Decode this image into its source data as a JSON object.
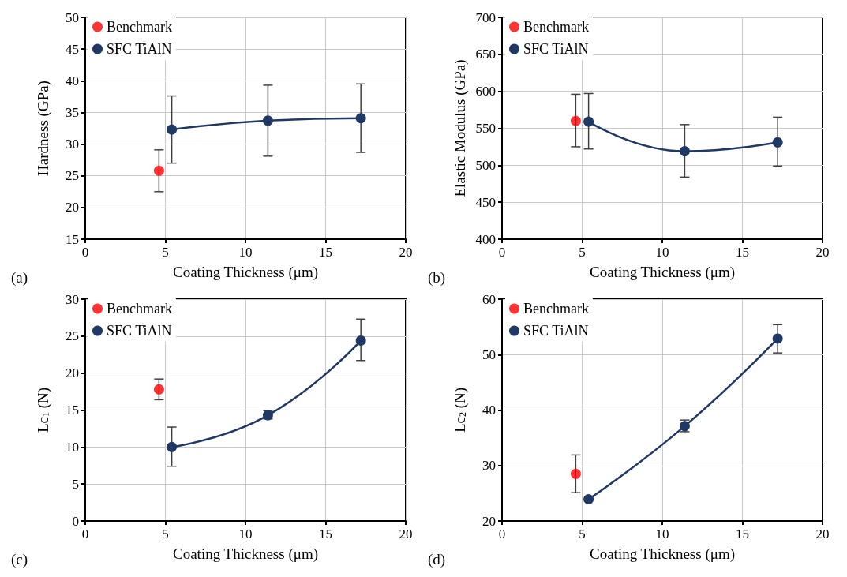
{
  "chart_data": [
    {
      "type": "scatter",
      "xlabel": "Coating Thickness (μm)",
      "ylabel": "Hardness (GPa)",
      "annotations": [
        "(a)"
      ],
      "xlim": [
        0,
        20
      ],
      "xticks": [
        0,
        5,
        10,
        15,
        20
      ],
      "ylim": [
        15,
        50
      ],
      "yticks": [
        15,
        20,
        25,
        30,
        35,
        40,
        45,
        50
      ],
      "grid": true,
      "legend": "top left",
      "marker": "circle",
      "series": [
        {
          "name": "Benchmark",
          "type": "scatter",
          "color": "#ff0000",
          "x": [
            4.6
          ],
          "values": [
            25.8
          ],
          "errors": [
            [
              22.5,
              29.1
            ]
          ]
        },
        {
          "name": "SFC TiAlN",
          "type": "line",
          "color": "#1f3864",
          "x": [
            5.4,
            11.4,
            17.2
          ],
          "values": [
            32.3,
            33.7,
            34.1
          ],
          "errors": [
            [
              27,
              37.6
            ],
            [
              28.1,
              39.3
            ],
            [
              28.7,
              39.5
            ]
          ]
        }
      ]
    },
    {
      "type": "scatter",
      "xlabel": "Coating Thickness (μm)",
      "ylabel": "Elastic Modulus (GPa)",
      "annotations": [
        "(b)"
      ],
      "xlim": [
        0,
        20
      ],
      "xticks": [
        0,
        5,
        10,
        15,
        20
      ],
      "ylim": [
        400,
        700
      ],
      "yticks": [
        400,
        450,
        500,
        550,
        600,
        650,
        700
      ],
      "grid": true,
      "legend": "top left",
      "marker": "circle",
      "series": [
        {
          "name": "Benchmark",
          "type": "scatter",
          "color": "#ff0000",
          "x": [
            4.6
          ],
          "values": [
            560
          ],
          "errors": [
            [
              525,
              596
            ]
          ]
        },
        {
          "name": "SFC TiAlN",
          "type": "line",
          "color": "#1f3864",
          "x": [
            5.4,
            11.4,
            17.2
          ],
          "values": [
            559,
            519,
            531
          ],
          "errors": [
            [
              522,
              597
            ],
            [
              484,
              555
            ],
            [
              499,
              565
            ]
          ]
        }
      ]
    },
    {
      "type": "scatter",
      "xlabel": "Coating Thickness (μm)",
      "ylabel": "Lc$_{1}$ (N)",
      "annotations": [
        "(c)"
      ],
      "xlim": [
        0,
        20
      ],
      "xticks": [
        0,
        5,
        10,
        15,
        20
      ],
      "ylim": [
        0,
        30
      ],
      "yticks": [
        0,
        5,
        10,
        15,
        20,
        25,
        30
      ],
      "grid": true,
      "legend": "top left",
      "marker": "circle",
      "series": [
        {
          "name": "Benchmark",
          "type": "scatter",
          "color": "#ff0000",
          "x": [
            4.6
          ],
          "values": [
            17.8
          ],
          "errors": [
            [
              16.4,
              19.2
            ]
          ]
        },
        {
          "name": "SFC TiAlN",
          "type": "line",
          "color": "#1f3864",
          "x": [
            5.4,
            11.4,
            17.2
          ],
          "values": [
            10.0,
            14.3,
            24.4
          ],
          "errors": [
            [
              7.4,
              12.7
            ],
            [
              13.8,
              14.9
            ],
            [
              21.7,
              27.3
            ]
          ]
        }
      ]
    },
    {
      "type": "scatter",
      "xlabel": "Coating Thickness (μm)",
      "ylabel": "Lc$_{2}$ (N)",
      "annotations": [
        "(d)"
      ],
      "xlim": [
        0,
        20
      ],
      "xticks": [
        0,
        5,
        10,
        15,
        20
      ],
      "ylim": [
        20,
        60
      ],
      "yticks": [
        20,
        30,
        40,
        50,
        60
      ],
      "grid": true,
      "legend": "top left",
      "marker": "circle",
      "series": [
        {
          "name": "Benchmark",
          "type": "scatter",
          "color": "#ff0000",
          "x": [
            4.6
          ],
          "values": [
            28.5
          ],
          "errors": [
            [
              25.1,
              31.9
            ]
          ]
        },
        {
          "name": "SFC TiAlN",
          "type": "line",
          "color": "#1f3864",
          "x": [
            5.4,
            11.4,
            17.2
          ],
          "values": [
            23.9,
            37.1,
            52.9
          ],
          "errors": [
            null,
            [
              36.1,
              38.2
            ],
            [
              50.3,
              55.4
            ]
          ]
        }
      ]
    }
  ]
}
